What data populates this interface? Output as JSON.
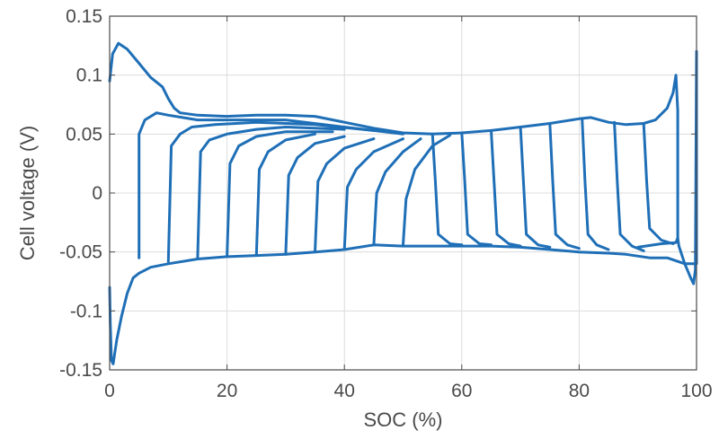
{
  "chart_data": {
    "type": "line",
    "xlabel": "SOC (%)",
    "ylabel": "Cell voltage (V)",
    "xlim": [
      0,
      100
    ],
    "ylim": [
      -0.15,
      0.15
    ],
    "x_ticks": [
      0,
      20,
      40,
      60,
      80,
      100
    ],
    "x_tick_labels": [
      "0",
      "20",
      "40",
      "60",
      "80",
      "100"
    ],
    "y_ticks": [
      0.15,
      0.1,
      0.05,
      0,
      -0.05,
      -0.1,
      -0.15
    ],
    "y_tick_labels": [
      "0.15",
      "0.1",
      "0.05",
      "0",
      "-0.05",
      "-0.1",
      "-0.15"
    ],
    "grid": true,
    "line_color": "#1f6fb7",
    "series": [
      {
        "points": [
          [
            0,
            0.095
          ],
          [
            0.5,
            0.118
          ],
          [
            1.5,
            0.127
          ],
          [
            3,
            0.122
          ],
          [
            5,
            0.11
          ],
          [
            7,
            0.098
          ],
          [
            9,
            0.09
          ],
          [
            10,
            0.08
          ],
          [
            11,
            0.072
          ],
          [
            12,
            0.068
          ],
          [
            15,
            0.066
          ],
          [
            20,
            0.065
          ],
          [
            25,
            0.066
          ],
          [
            30,
            0.066
          ],
          [
            35,
            0.065
          ],
          [
            40,
            0.06
          ],
          [
            45,
            0.055
          ],
          [
            50,
            0.051
          ],
          [
            55,
            0.05
          ],
          [
            60,
            0.051
          ],
          [
            65,
            0.053
          ],
          [
            70,
            0.056
          ],
          [
            75,
            0.059
          ],
          [
            80,
            0.063
          ],
          [
            82,
            0.064
          ],
          [
            85,
            0.06
          ],
          [
            88,
            0.058
          ],
          [
            91,
            0.059
          ],
          [
            93,
            0.062
          ],
          [
            95,
            0.072
          ],
          [
            96,
            0.085
          ],
          [
            96.5,
            0.1
          ],
          [
            96.8,
            0.07
          ],
          [
            96.8,
            -0.038
          ],
          [
            97,
            -0.045
          ],
          [
            98,
            -0.06
          ],
          [
            99,
            -0.072
          ],
          [
            99.5,
            -0.077
          ],
          [
            99.8,
            -0.065
          ],
          [
            100,
            0.12
          ]
        ]
      },
      {
        "points": [
          [
            100,
            0.12
          ],
          [
            100,
            -0.06
          ],
          [
            98,
            -0.06
          ],
          [
            95,
            -0.055
          ],
          [
            92,
            -0.055
          ],
          [
            88,
            -0.052
          ],
          [
            85,
            -0.051
          ],
          [
            80,
            -0.05
          ],
          [
            75,
            -0.048
          ],
          [
            70,
            -0.046
          ],
          [
            65,
            -0.045
          ],
          [
            60,
            -0.045
          ],
          [
            55,
            -0.045
          ],
          [
            50,
            -0.045
          ],
          [
            45,
            -0.044
          ],
          [
            40,
            -0.048
          ],
          [
            35,
            -0.05
          ],
          [
            30,
            -0.052
          ],
          [
            25,
            -0.053
          ],
          [
            20,
            -0.054
          ],
          [
            15,
            -0.056
          ],
          [
            10,
            -0.06
          ],
          [
            7,
            -0.063
          ],
          [
            5,
            -0.068
          ],
          [
            4,
            -0.072
          ],
          [
            3,
            -0.085
          ],
          [
            2,
            -0.105
          ],
          [
            1.2,
            -0.125
          ],
          [
            0.6,
            -0.145
          ],
          [
            0.3,
            -0.142
          ],
          [
            0.1,
            -0.11
          ],
          [
            0,
            -0.08
          ]
        ]
      },
      {
        "points": [
          [
            5,
            -0.055
          ],
          [
            5,
            0.05
          ],
          [
            6,
            0.062
          ],
          [
            8,
            0.068
          ],
          [
            10,
            0.066
          ],
          [
            15,
            0.062
          ],
          [
            20,
            0.062
          ],
          [
            30,
            0.062
          ],
          [
            40,
            0.056
          ],
          [
            50,
            0.05
          ]
        ]
      },
      {
        "points": [
          [
            10,
            -0.058
          ],
          [
            10.5,
            0.04
          ],
          [
            12,
            0.05
          ],
          [
            14,
            0.056
          ],
          [
            18,
            0.058
          ],
          [
            25,
            0.06
          ],
          [
            35,
            0.058
          ],
          [
            45,
            0.053
          ]
        ]
      },
      {
        "points": [
          [
            15,
            -0.055
          ],
          [
            15.5,
            0.035
          ],
          [
            17,
            0.045
          ],
          [
            20,
            0.05
          ],
          [
            25,
            0.054
          ],
          [
            30,
            0.056
          ],
          [
            40,
            0.054
          ]
        ]
      },
      {
        "points": [
          [
            20,
            -0.054
          ],
          [
            20.5,
            0.025
          ],
          [
            22,
            0.04
          ],
          [
            25,
            0.048
          ],
          [
            30,
            0.052
          ],
          [
            38,
            0.052
          ]
        ]
      },
      {
        "points": [
          [
            25,
            -0.053
          ],
          [
            25.5,
            0.02
          ],
          [
            27,
            0.035
          ],
          [
            30,
            0.045
          ],
          [
            35,
            0.05
          ]
        ]
      },
      {
        "points": [
          [
            30,
            -0.052
          ],
          [
            30.5,
            0.015
          ],
          [
            32,
            0.03
          ],
          [
            35,
            0.042
          ],
          [
            40,
            0.048
          ]
        ]
      },
      {
        "points": [
          [
            35,
            -0.05
          ],
          [
            35.5,
            0.01
          ],
          [
            37,
            0.025
          ],
          [
            40,
            0.038
          ],
          [
            45,
            0.046
          ]
        ]
      },
      {
        "points": [
          [
            40,
            -0.048
          ],
          [
            40.5,
            0.005
          ],
          [
            42,
            0.02
          ],
          [
            45,
            0.035
          ],
          [
            50,
            0.046
          ]
        ]
      },
      {
        "points": [
          [
            45,
            -0.044
          ],
          [
            45.5,
            0.0
          ],
          [
            47,
            0.018
          ],
          [
            50,
            0.035
          ],
          [
            53,
            0.046
          ]
        ]
      },
      {
        "points": [
          [
            50,
            -0.044
          ],
          [
            50.5,
            -0.005
          ],
          [
            52,
            0.02
          ],
          [
            55,
            0.04
          ],
          [
            58,
            0.049
          ]
        ]
      },
      {
        "points": [
          [
            55,
            0.05
          ],
          [
            55.5,
            0.01
          ],
          [
            56,
            -0.035
          ],
          [
            58,
            -0.043
          ],
          [
            60,
            -0.044
          ]
        ]
      },
      {
        "points": [
          [
            60,
            0.051
          ],
          [
            60.5,
            0.01
          ],
          [
            61,
            -0.035
          ],
          [
            63,
            -0.043
          ],
          [
            65,
            -0.044
          ]
        ]
      },
      {
        "points": [
          [
            65,
            0.053
          ],
          [
            65.5,
            0.01
          ],
          [
            66,
            -0.035
          ],
          [
            68,
            -0.043
          ],
          [
            70,
            -0.045
          ]
        ]
      },
      {
        "points": [
          [
            70,
            0.056
          ],
          [
            70.5,
            0.01
          ],
          [
            71,
            -0.035
          ],
          [
            73,
            -0.044
          ],
          [
            75,
            -0.046
          ]
        ]
      },
      {
        "points": [
          [
            75,
            0.059
          ],
          [
            75.5,
            0.01
          ],
          [
            76,
            -0.035
          ],
          [
            78,
            -0.044
          ],
          [
            80,
            -0.047
          ]
        ]
      },
      {
        "points": [
          [
            80.5,
            0.063
          ],
          [
            81,
            0.01
          ],
          [
            81.5,
            -0.035
          ],
          [
            83,
            -0.044
          ],
          [
            85,
            -0.048
          ]
        ]
      },
      {
        "points": [
          [
            86,
            0.06
          ],
          [
            86.5,
            0.01
          ],
          [
            87,
            -0.035
          ],
          [
            89,
            -0.045
          ],
          [
            91,
            -0.049
          ]
        ]
      },
      {
        "points": [
          [
            91,
            0.059
          ],
          [
            91.5,
            0.01
          ],
          [
            92,
            -0.03
          ],
          [
            94,
            -0.04
          ],
          [
            96,
            -0.043
          ]
        ]
      },
      {
        "points": [
          [
            96.8,
            -0.038
          ],
          [
            96.5,
            -0.042
          ],
          [
            94,
            -0.043
          ],
          [
            90,
            -0.046
          ]
        ]
      }
    ]
  }
}
